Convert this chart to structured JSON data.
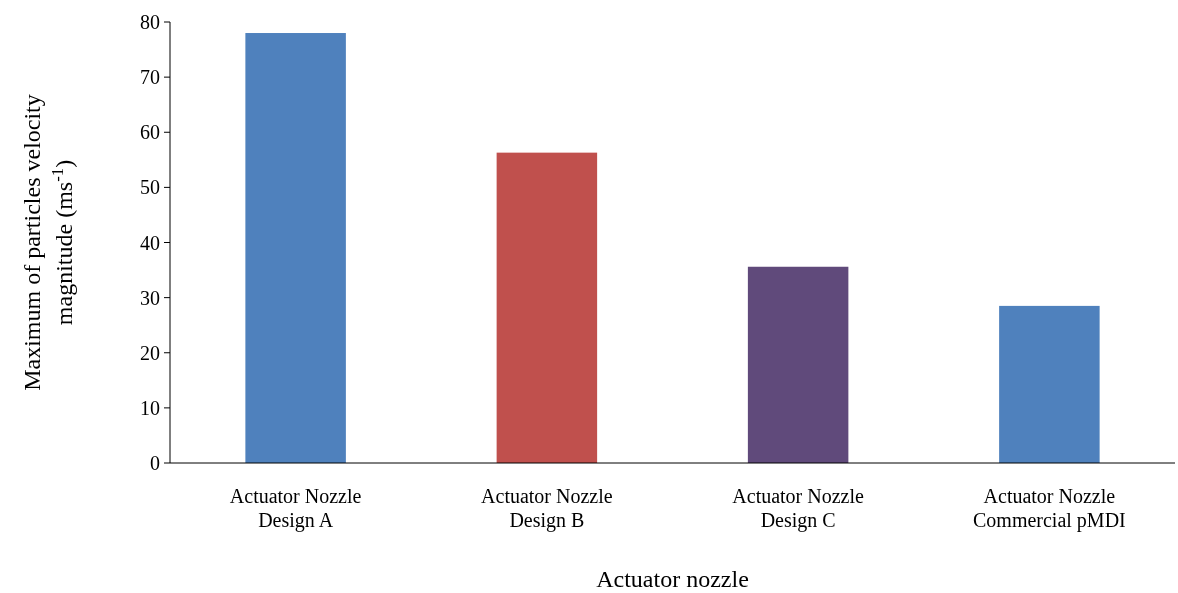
{
  "chart_data": {
    "type": "bar",
    "xlabel": "Actuator nozzle",
    "ylabel": "Maximum of particles velocity\nmagnitude (ms$^{-1}$)",
    "categories": [
      "Actuator Nozzle\nDesign A",
      "Actuator Nozzle\nDesign B",
      "Actuator Nozzle\nDesign C",
      "Actuator Nozzle\nCommercial pMDI"
    ],
    "values": [
      78,
      56.3,
      35.6,
      28.5
    ],
    "colors": [
      "#4f81bd",
      "#c0504d",
      "#604a7b",
      "#4f81bd"
    ],
    "ylim": [
      0,
      80
    ],
    "yticks": [
      0,
      10,
      20,
      30,
      40,
      50,
      60,
      70,
      80
    ],
    "grid": false
  }
}
